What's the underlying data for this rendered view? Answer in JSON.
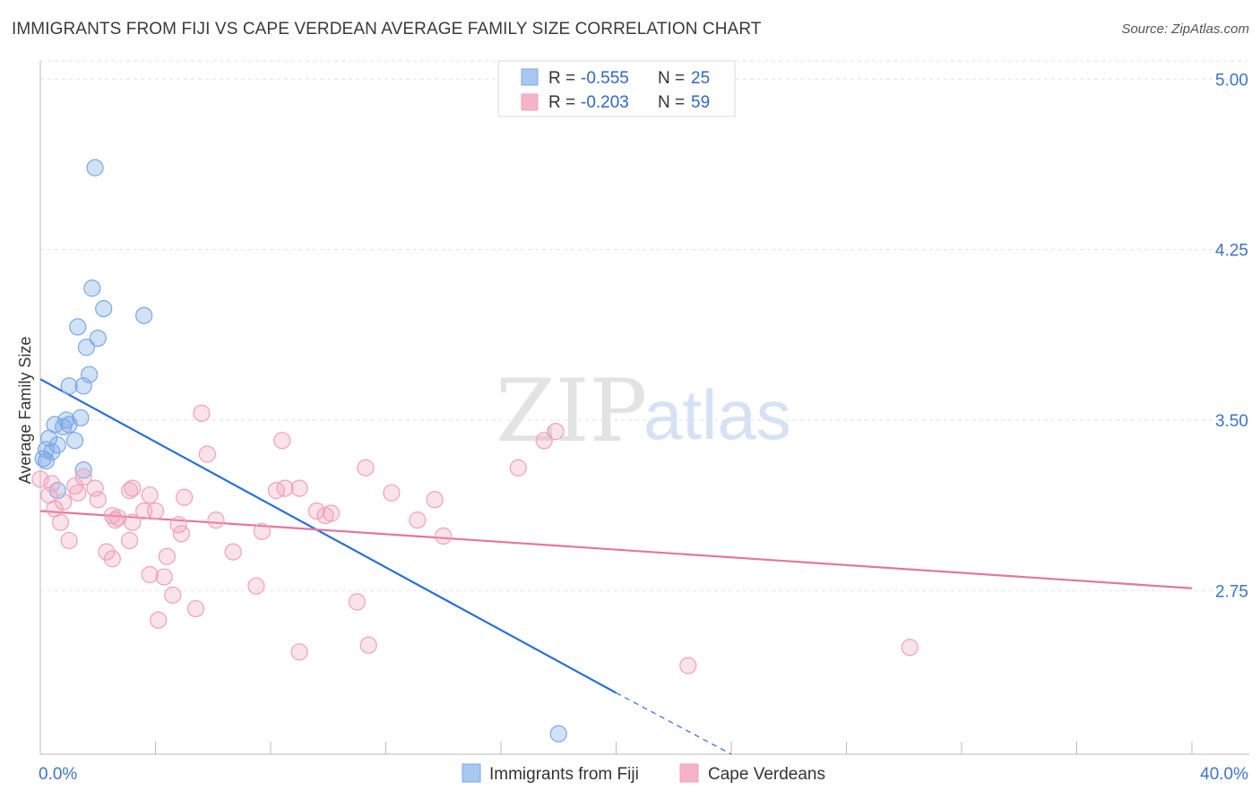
{
  "header": {
    "title": "IMMIGRANTS FROM FIJI VS CAPE VERDEAN AVERAGE FAMILY SIZE CORRELATION CHART",
    "source": "Source: ZipAtlas.com"
  },
  "watermark": {
    "zip": "ZIP",
    "atlas": "atlas"
  },
  "legend": {
    "rows": [
      {
        "r_label": "R = ",
        "r_value": "-0.555",
        "n_label": "N = ",
        "n_value": "25",
        "color": "#a9c8f0"
      },
      {
        "r_label": "R = ",
        "r_value": "-0.203",
        "n_label": "N = ",
        "n_value": "59",
        "color": "#f5b3c8"
      }
    ]
  },
  "bottom_legend": {
    "items": [
      {
        "label": "Immigrants from Fiji",
        "color": "#a9c8f0"
      },
      {
        "label": "Cape Verdeans",
        "color": "#f5b3c8"
      }
    ]
  },
  "chart_data": {
    "type": "scatter",
    "title": "IMMIGRANTS FROM FIJI VS CAPE VERDEAN AVERAGE FAMILY SIZE CORRELATION CHART",
    "ylabel": "Average Family Size",
    "xlabel": "",
    "xlim": [
      0,
      40
    ],
    "ylim": [
      2.03,
      5.08
    ],
    "y_ticks": [
      {
        "value": 5.0,
        "label": "5.00"
      },
      {
        "value": 4.25,
        "label": "4.25"
      },
      {
        "value": 3.5,
        "label": "3.50"
      },
      {
        "value": 2.75,
        "label": "2.75"
      }
    ],
    "x_tick_labels": [
      {
        "value": 0,
        "label": "0.0%"
      },
      {
        "value": 40,
        "label": "40.0%"
      }
    ],
    "grid": true,
    "series": [
      {
        "name": "Immigrants from Fiji",
        "color": "#7aa8e6",
        "line_color": "#2a6fd4",
        "r": -0.555,
        "n": 25,
        "trend": {
          "x0": 0.0,
          "y0": 3.68,
          "x1": 20.0,
          "y1": 2.3,
          "dash_to_x": 24.0,
          "dash_to_y": 2.03
        },
        "points": [
          [
            1.9,
            4.61
          ],
          [
            1.8,
            4.08
          ],
          [
            2.2,
            3.99
          ],
          [
            3.6,
            3.96
          ],
          [
            1.3,
            3.91
          ],
          [
            2.0,
            3.86
          ],
          [
            1.6,
            3.82
          ],
          [
            1.7,
            3.7
          ],
          [
            1.0,
            3.65
          ],
          [
            1.5,
            3.65
          ],
          [
            0.9,
            3.5
          ],
          [
            1.4,
            3.51
          ],
          [
            0.5,
            3.48
          ],
          [
            0.8,
            3.47
          ],
          [
            1.0,
            3.48
          ],
          [
            0.3,
            3.42
          ],
          [
            1.2,
            3.41
          ],
          [
            0.6,
            3.39
          ],
          [
            0.2,
            3.37
          ],
          [
            0.4,
            3.36
          ],
          [
            0.1,
            3.33
          ],
          [
            0.2,
            3.32
          ],
          [
            1.5,
            3.28
          ],
          [
            0.6,
            3.19
          ],
          [
            18.0,
            2.12
          ]
        ]
      },
      {
        "name": "Cape Verdeans",
        "color": "#f0a0bb",
        "line_color": "#e4769c",
        "r": -0.203,
        "n": 59,
        "trend": {
          "x0": 0.0,
          "y0": 3.1,
          "x1": 40.0,
          "y1": 2.76
        },
        "points": [
          [
            5.6,
            3.53
          ],
          [
            17.9,
            3.45
          ],
          [
            17.5,
            3.41
          ],
          [
            8.4,
            3.41
          ],
          [
            5.8,
            3.35
          ],
          [
            11.3,
            3.29
          ],
          [
            16.6,
            3.29
          ],
          [
            1.5,
            3.25
          ],
          [
            0.0,
            3.24
          ],
          [
            1.2,
            3.21
          ],
          [
            1.9,
            3.2
          ],
          [
            3.2,
            3.2
          ],
          [
            8.5,
            3.2
          ],
          [
            8.2,
            3.19
          ],
          [
            9.0,
            3.2
          ],
          [
            3.1,
            3.19
          ],
          [
            12.2,
            3.18
          ],
          [
            3.8,
            3.17
          ],
          [
            0.3,
            3.17
          ],
          [
            5.0,
            3.16
          ],
          [
            13.7,
            3.15
          ],
          [
            0.8,
            3.14
          ],
          [
            2.0,
            3.15
          ],
          [
            0.5,
            3.11
          ],
          [
            9.6,
            3.1
          ],
          [
            3.6,
            3.1
          ],
          [
            4.0,
            3.1
          ],
          [
            10.1,
            3.09
          ],
          [
            9.9,
            3.08
          ],
          [
            2.5,
            3.08
          ],
          [
            2.7,
            3.07
          ],
          [
            2.6,
            3.06
          ],
          [
            6.1,
            3.06
          ],
          [
            13.1,
            3.06
          ],
          [
            0.7,
            3.05
          ],
          [
            3.2,
            3.05
          ],
          [
            4.8,
            3.04
          ],
          [
            7.7,
            3.01
          ],
          [
            4.9,
            3.0
          ],
          [
            14.0,
            2.99
          ],
          [
            1.0,
            2.97
          ],
          [
            3.1,
            2.97
          ],
          [
            2.3,
            2.92
          ],
          [
            6.7,
            2.92
          ],
          [
            4.4,
            2.9
          ],
          [
            2.5,
            2.89
          ],
          [
            3.8,
            2.82
          ],
          [
            4.3,
            2.81
          ],
          [
            7.5,
            2.77
          ],
          [
            4.6,
            2.73
          ],
          [
            11.0,
            2.7
          ],
          [
            5.4,
            2.67
          ],
          [
            4.1,
            2.62
          ],
          [
            30.2,
            2.5
          ],
          [
            11.4,
            2.51
          ],
          [
            9.0,
            2.48
          ],
          [
            22.5,
            2.42
          ],
          [
            0.4,
            3.22
          ],
          [
            1.3,
            3.18
          ]
        ]
      }
    ]
  }
}
